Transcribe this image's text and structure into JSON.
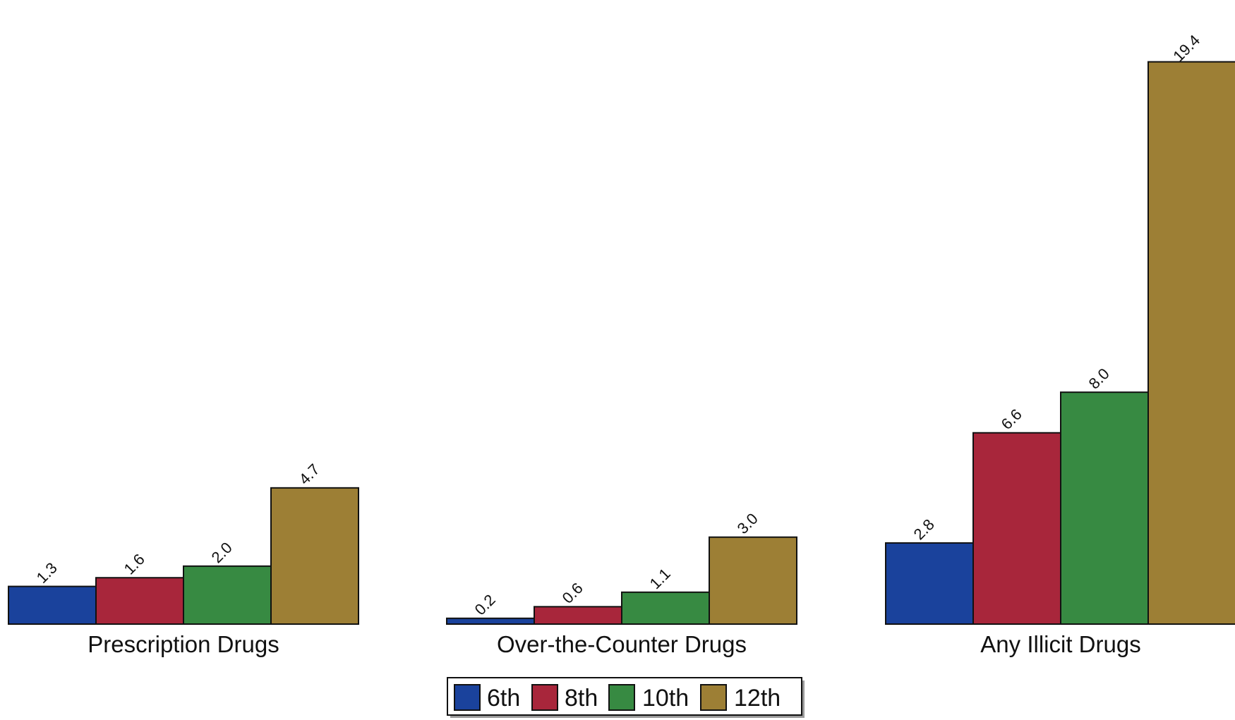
{
  "chart_data": {
    "type": "bar",
    "categories": [
      "Prescription Drugs",
      "Over-the-Counter Drugs",
      "Any Illicit Drugs"
    ],
    "series": [
      {
        "name": "6th",
        "values": [
          1.3,
          0.2,
          2.8
        ],
        "color": "#1a429c"
      },
      {
        "name": "8th",
        "values": [
          1.6,
          0.6,
          6.6
        ],
        "color": "#a8263b"
      },
      {
        "name": "10th",
        "values": [
          2.0,
          1.1,
          8.0
        ],
        "color": "#378a42"
      },
      {
        "name": "12th",
        "values": [
          4.7,
          3.0,
          19.4
        ],
        "color": "#9d7f35"
      }
    ],
    "value_labels": [
      [
        "1.3",
        "1.6",
        "2.0",
        "4.7"
      ],
      [
        "0.2",
        "0.6",
        "1.1",
        "3.0"
      ],
      [
        "2.8",
        "6.6",
        "8.0",
        "19.4"
      ]
    ],
    "ylim": [
      0,
      20
    ],
    "grid": false,
    "legend_position": "bottom-center"
  }
}
